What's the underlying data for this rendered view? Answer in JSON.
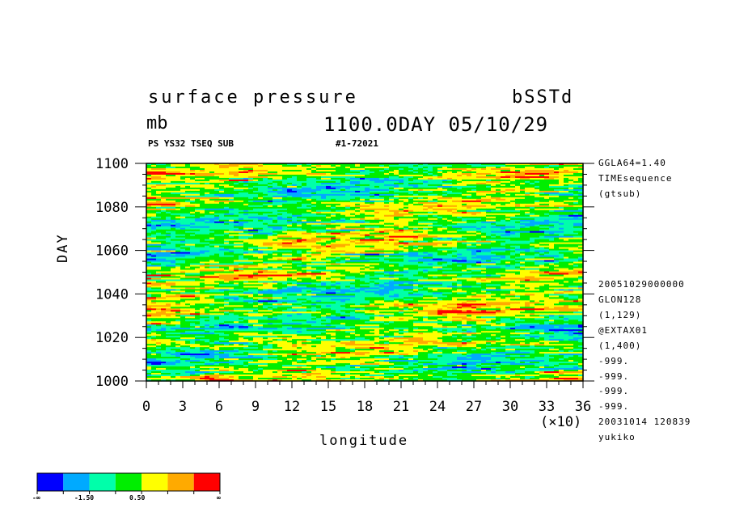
{
  "header": {
    "title": "surface pressure",
    "experiment": "bSSTd",
    "units": "mb",
    "time_stamp": "1100.0DAY 05/10/29",
    "source_id": "PS YS32 TSEQ SUB",
    "run_id": "#1-72021"
  },
  "side_info": {
    "lines_top": [
      "GGLA64=1.40",
      "TIMEsequence",
      "(gtsub)"
    ],
    "lines_bottom": [
      "20051029000000",
      "GLON128",
      "(1,129)",
      "@EXTAX01",
      "(1,400)",
      "-999.",
      "-999.",
      "-999.",
      "-999.",
      "20031014 120839",
      "yukiko"
    ]
  },
  "colorbar": {
    "colors": [
      "#0000ff",
      "#00aaff",
      "#00ffaa",
      "#00ee00",
      "#ffff00",
      "#ffaa00",
      "#ff0000"
    ],
    "labels": [
      "-∞",
      "-1.50",
      "0.50",
      "∞"
    ]
  },
  "chart_data": {
    "type": "heatmap",
    "title": "surface pressure",
    "xlabel": "longitude",
    "x_scale_note": "(×10)",
    "ylabel": "DAY",
    "xlim": [
      0,
      36
    ],
    "ylim": [
      1000,
      1100
    ],
    "x_ticks": [
      "0",
      "3",
      "6",
      "9",
      "12",
      "15",
      "18",
      "21",
      "24",
      "27",
      "30",
      "33",
      "36"
    ],
    "y_ticks": [
      "1000",
      "1020",
      "1040",
      "1060",
      "1080",
      "1100"
    ],
    "color_levels": [
      "-∞",
      "-1.50",
      "0.50",
      "∞"
    ],
    "color_scale": [
      "#0000ff",
      "#00aaff",
      "#00ffaa",
      "#00ee00",
      "#ffff00",
      "#ffaa00",
      "#ff0000"
    ]
  }
}
